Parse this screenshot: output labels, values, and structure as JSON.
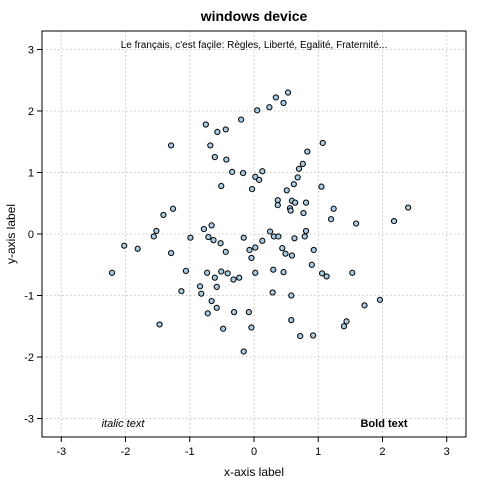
{
  "chart_data": {
    "type": "scatter",
    "title": "windows device",
    "xlabel": "x-axis label",
    "ylabel": "y-axis label",
    "xlim": [
      -3.3,
      3.3
    ],
    "ylim": [
      -3.3,
      3.3
    ],
    "xticks": [
      -3,
      -2,
      -1,
      0,
      1,
      2,
      3
    ],
    "yticks": [
      -3,
      -2,
      -1,
      0,
      1,
      2,
      3
    ],
    "grid": true,
    "point_color": "#a9cce3",
    "annotations": {
      "top": "Le français, c'est façile: Règles, Liberté, Egalité, Fraternité...",
      "bottom_left": "italic text",
      "bottom_right": "Bold text"
    },
    "points": [
      {
        "x": 0.24,
        "y": 2.06
      },
      {
        "x": 0.34,
        "y": 2.22
      },
      {
        "x": 0.53,
        "y": 2.3
      },
      {
        "x": 0.46,
        "y": 2.13
      },
      {
        "x": 0.05,
        "y": 2.01
      },
      {
        "x": -0.2,
        "y": 1.86
      },
      {
        "x": -0.44,
        "y": 1.7
      },
      {
        "x": -0.75,
        "y": 1.78
      },
      {
        "x": -0.57,
        "y": 1.66
      },
      {
        "x": -1.29,
        "y": 1.44
      },
      {
        "x": -0.68,
        "y": 1.44
      },
      {
        "x": -0.61,
        "y": 1.25
      },
      {
        "x": -0.43,
        "y": 1.21
      },
      {
        "x": 1.07,
        "y": 1.48
      },
      {
        "x": 0.83,
        "y": 1.34
      },
      {
        "x": 0.76,
        "y": 1.14
      },
      {
        "x": 0.7,
        "y": 1.06
      },
      {
        "x": 0.13,
        "y": 1.02
      },
      {
        "x": -0.34,
        "y": 1.01
      },
      {
        "x": 0.02,
        "y": 0.93
      },
      {
        "x": 0.08,
        "y": 0.88
      },
      {
        "x": -0.17,
        "y": 0.99
      },
      {
        "x": 0.68,
        "y": 0.92
      },
      {
        "x": 0.62,
        "y": 0.81
      },
      {
        "x": -0.03,
        "y": 0.73
      },
      {
        "x": 0.51,
        "y": 0.71
      },
      {
        "x": -0.51,
        "y": 0.78
      },
      {
        "x": 0.37,
        "y": 0.55
      },
      {
        "x": 0.37,
        "y": 0.47
      },
      {
        "x": 0.59,
        "y": 0.54
      },
      {
        "x": 0.64,
        "y": 0.51
      },
      {
        "x": 0.81,
        "y": 0.51
      },
      {
        "x": 0.56,
        "y": 0.42
      },
      {
        "x": 0.57,
        "y": 0.38
      },
      {
        "x": 0.77,
        "y": 0.34
      },
      {
        "x": 1.05,
        "y": 0.77
      },
      {
        "x": 1.24,
        "y": 0.41
      },
      {
        "x": 1.2,
        "y": 0.24
      },
      {
        "x": 1.59,
        "y": 0.17
      },
      {
        "x": 2.18,
        "y": 0.21
      },
      {
        "x": 2.4,
        "y": 0.43
      },
      {
        "x": -1.26,
        "y": 0.41
      },
      {
        "x": -1.41,
        "y": 0.31
      },
      {
        "x": -1.52,
        "y": 0.05
      },
      {
        "x": -1.81,
        "y": -0.24
      },
      {
        "x": -2.02,
        "y": -0.19
      },
      {
        "x": -2.21,
        "y": -0.63
      },
      {
        "x": -1.56,
        "y": -0.04
      },
      {
        "x": -1.29,
        "y": -0.31
      },
      {
        "x": -0.99,
        "y": -0.06
      },
      {
        "x": -0.78,
        "y": 0.08
      },
      {
        "x": -0.71,
        "y": -0.05
      },
      {
        "x": -0.63,
        "y": -0.1
      },
      {
        "x": -0.66,
        "y": 0.14
      },
      {
        "x": -0.52,
        "y": -0.15
      },
      {
        "x": -0.44,
        "y": -0.29
      },
      {
        "x": -0.16,
        "y": -0.06
      },
      {
        "x": -0.07,
        "y": -0.26
      },
      {
        "x": 0.02,
        "y": -0.22
      },
      {
        "x": 0.13,
        "y": -0.11
      },
      {
        "x": 0.25,
        "y": 0.04
      },
      {
        "x": 0.31,
        "y": -0.04
      },
      {
        "x": 0.38,
        "y": -0.04
      },
      {
        "x": 0.44,
        "y": -0.23
      },
      {
        "x": 0.49,
        "y": -0.32
      },
      {
        "x": 0.59,
        "y": -0.35
      },
      {
        "x": 0.63,
        "y": -0.07
      },
      {
        "x": 0.81,
        "y": 0.05
      },
      {
        "x": 0.79,
        "y": -0.04
      },
      {
        "x": 0.93,
        "y": -0.26
      },
      {
        "x": 1.06,
        "y": -0.64
      },
      {
        "x": 1.13,
        "y": -0.69
      },
      {
        "x": 1.53,
        "y": -0.63
      },
      {
        "x": 0.9,
        "y": -0.5
      },
      {
        "x": -1.06,
        "y": -0.6
      },
      {
        "x": -0.84,
        "y": -0.85
      },
      {
        "x": -0.82,
        "y": -0.97
      },
      {
        "x": -0.73,
        "y": -0.63
      },
      {
        "x": -0.61,
        "y": -0.71
      },
      {
        "x": -0.51,
        "y": -0.61
      },
      {
        "x": -0.41,
        "y": -0.64
      },
      {
        "x": -0.32,
        "y": -0.74
      },
      {
        "x": -0.58,
        "y": -0.86
      },
      {
        "x": -0.66,
        "y": -1.09
      },
      {
        "x": -0.58,
        "y": -1.2
      },
      {
        "x": -0.23,
        "y": -0.71
      },
      {
        "x": -0.04,
        "y": -0.39
      },
      {
        "x": 0.02,
        "y": -0.63
      },
      {
        "x": 0.3,
        "y": -0.58
      },
      {
        "x": 0.29,
        "y": -0.95
      },
      {
        "x": 0.58,
        "y": -1.0
      },
      {
        "x": 0.46,
        "y": -0.62
      },
      {
        "x": -1.13,
        "y": -0.93
      },
      {
        "x": -0.72,
        "y": -1.29
      },
      {
        "x": -0.31,
        "y": -1.27
      },
      {
        "x": -0.48,
        "y": -1.54
      },
      {
        "x": -1.47,
        "y": -1.47
      },
      {
        "x": -0.08,
        "y": -1.27
      },
      {
        "x": -0.04,
        "y": -1.52
      },
      {
        "x": 0.58,
        "y": -1.4
      },
      {
        "x": 0.72,
        "y": -1.66
      },
      {
        "x": 0.92,
        "y": -1.65
      },
      {
        "x": -0.16,
        "y": -1.91
      },
      {
        "x": 1.44,
        "y": -1.42
      },
      {
        "x": 1.4,
        "y": -1.5
      },
      {
        "x": 1.72,
        "y": -1.16
      },
      {
        "x": 1.96,
        "y": -1.07
      }
    ]
  }
}
